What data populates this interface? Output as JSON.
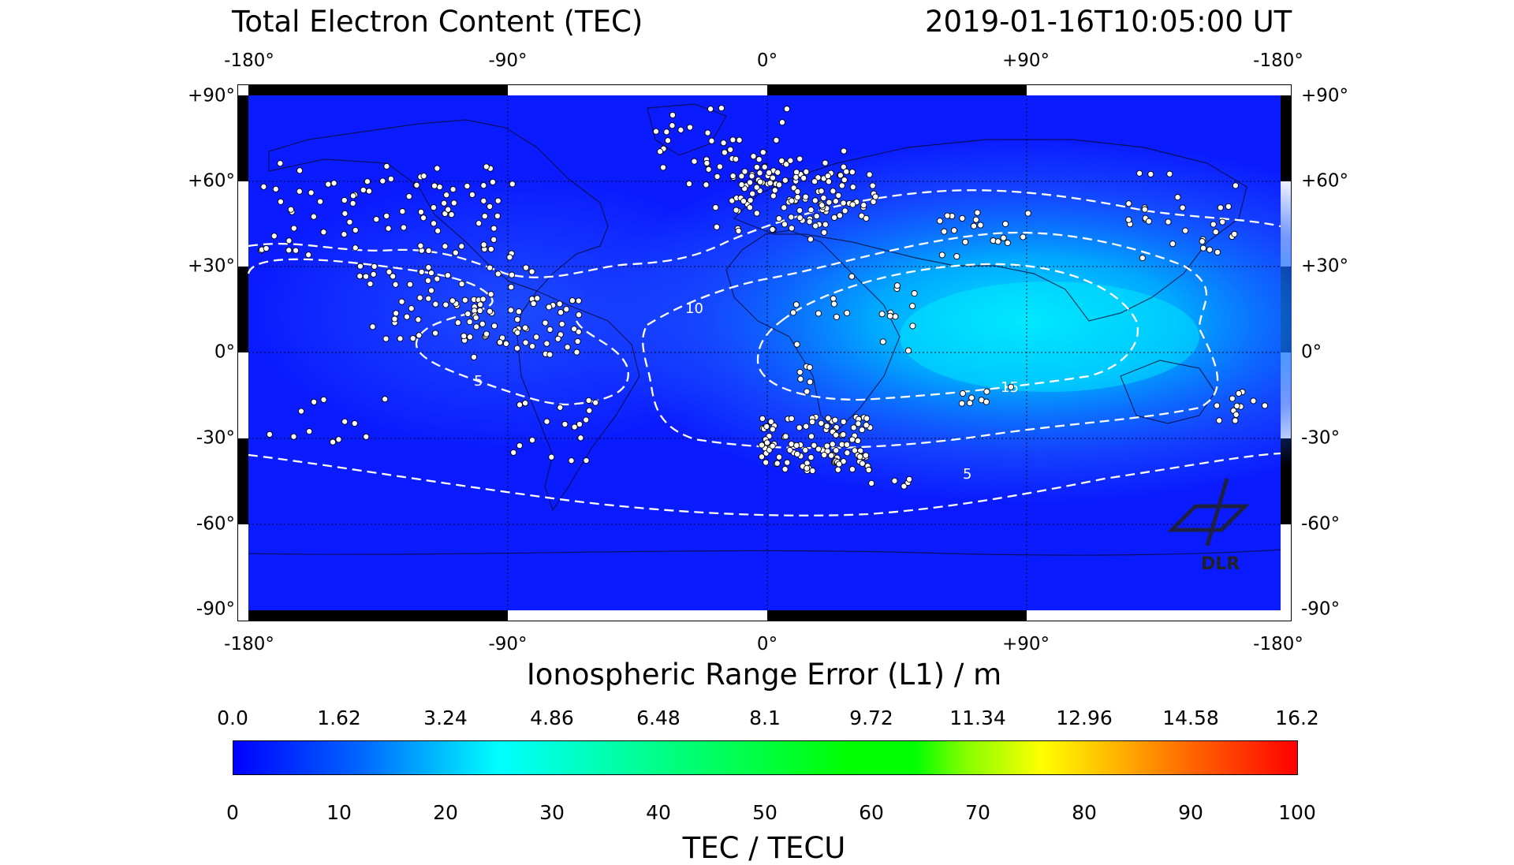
{
  "header": {
    "title": "Total Electron Content (TEC)",
    "timestamp": "2019-01-16T10:05:00 UT"
  },
  "map": {
    "lon_labels": [
      "-180°",
      "-90°",
      "0°",
      "+90°",
      "-180°"
    ],
    "lat_labels": [
      "+90°",
      "+60°",
      "+30°",
      "0°",
      "-30°",
      "-60°",
      "-90°"
    ],
    "contour_labels": [
      "5",
      "10",
      "15",
      "5"
    ],
    "logo_text": "DLR",
    "background_color": "#0a1cff",
    "station_color": "#ffffff"
  },
  "colorbar": {
    "title": "Ionospheric Range Error (L1) / m",
    "top_ticks": [
      "0.0",
      "1.62",
      "3.24",
      "4.86",
      "6.48",
      "8.1",
      "9.72",
      "11.34",
      "12.96",
      "14.58",
      "16.2"
    ],
    "bottom_ticks": [
      "0",
      "10",
      "20",
      "30",
      "40",
      "50",
      "60",
      "70",
      "80",
      "90",
      "100"
    ],
    "label": "TEC / TECU",
    "colors": [
      "#0000ff",
      "#00ffff",
      "#00ff00",
      "#ffff00",
      "#ff0000"
    ]
  }
}
